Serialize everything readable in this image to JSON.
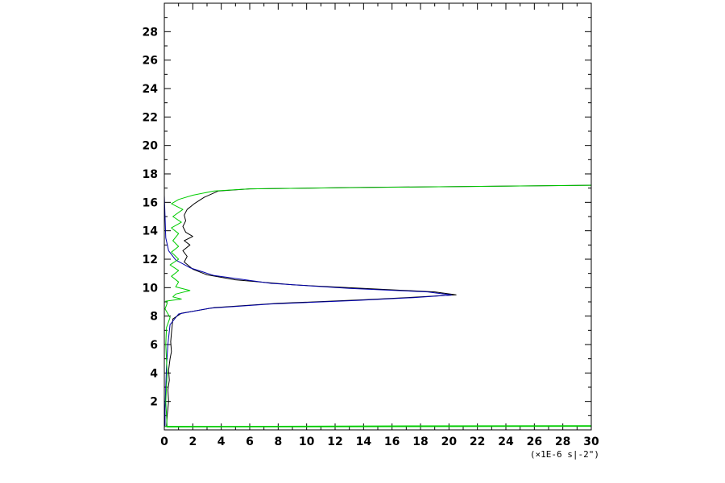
{
  "chart_data": {
    "type": "line",
    "title": "",
    "xlabel": "",
    "ylabel": "",
    "x_unit_label": "(×1E-6 s|-2\")",
    "xlim": [
      0,
      30
    ],
    "ylim": [
      0,
      30
    ],
    "x_ticks": [
      0,
      2,
      4,
      6,
      8,
      10,
      12,
      14,
      16,
      18,
      20,
      22,
      24,
      26,
      28,
      30
    ],
    "y_ticks": [
      2,
      4,
      6,
      8,
      10,
      12,
      14,
      16,
      18,
      20,
      22,
      24,
      26,
      28
    ],
    "grid": false,
    "legend": "none",
    "series": [
      {
        "color": "#000000",
        "points": [
          [
            0.15,
            0.2
          ],
          [
            0.2,
            1.0
          ],
          [
            0.3,
            2.0
          ],
          [
            0.25,
            2.8
          ],
          [
            0.35,
            3.5
          ],
          [
            0.3,
            4.2
          ],
          [
            0.4,
            5.0
          ],
          [
            0.5,
            5.5
          ],
          [
            0.45,
            6.2
          ],
          [
            0.5,
            6.8
          ],
          [
            0.55,
            7.3
          ],
          [
            0.6,
            7.8
          ],
          [
            1.2,
            8.2
          ],
          [
            3.5,
            8.6
          ],
          [
            8.0,
            8.9
          ],
          [
            14.0,
            9.15
          ],
          [
            18.0,
            9.35
          ],
          [
            20.5,
            9.5
          ],
          [
            19.0,
            9.7
          ],
          [
            14.0,
            9.95
          ],
          [
            9.0,
            10.2
          ],
          [
            5.0,
            10.55
          ],
          [
            3.0,
            10.9
          ],
          [
            2.0,
            11.3
          ],
          [
            1.4,
            11.8
          ],
          [
            1.6,
            12.2
          ],
          [
            1.3,
            12.6
          ],
          [
            1.8,
            13.0
          ],
          [
            1.4,
            13.3
          ],
          [
            2.0,
            13.6
          ],
          [
            1.5,
            13.9
          ],
          [
            1.3,
            14.3
          ],
          [
            1.5,
            14.7
          ],
          [
            1.4,
            15.1
          ],
          [
            1.6,
            15.5
          ],
          [
            2.1,
            15.9
          ],
          [
            2.8,
            16.35
          ],
          [
            3.8,
            16.8
          ],
          [
            6.0,
            16.95
          ],
          [
            10.0,
            17.0
          ],
          [
            14.0,
            17.05
          ],
          [
            20.0,
            17.1
          ],
          [
            25.0,
            17.15
          ],
          [
            30.0,
            17.2
          ]
        ]
      },
      {
        "color": "#0000aa",
        "points": [
          [
            0.05,
            0.2
          ],
          [
            0.05,
            1.5
          ],
          [
            0.1,
            3.0
          ],
          [
            0.15,
            4.5
          ],
          [
            0.25,
            6.0
          ],
          [
            0.4,
            7.4
          ],
          [
            1.0,
            8.15
          ],
          [
            3.2,
            8.55
          ],
          [
            7.5,
            8.85
          ],
          [
            13.5,
            9.1
          ],
          [
            17.5,
            9.3
          ],
          [
            20.2,
            9.48
          ],
          [
            18.5,
            9.7
          ],
          [
            13.0,
            9.95
          ],
          [
            7.5,
            10.3
          ],
          [
            3.5,
            10.85
          ],
          [
            1.8,
            11.4
          ],
          [
            0.8,
            11.95
          ],
          [
            0.3,
            12.6
          ],
          [
            0.1,
            13.5
          ],
          [
            0.05,
            15.0
          ],
          [
            0.0,
            16.5
          ],
          [
            0.0,
            18.0
          ],
          [
            0.0,
            23.0
          ],
          [
            0.0,
            27.0
          ]
        ]
      },
      {
        "color": "#00cc00",
        "points": [
          [
            0.0,
            0.25
          ],
          [
            5.0,
            0.25
          ],
          [
            15.0,
            0.28
          ],
          [
            30.0,
            0.3
          ],
          [
            30.0,
            0.25
          ],
          [
            0.2,
            0.2
          ],
          [
            0.1,
            2.0
          ],
          [
            0.2,
            4.0
          ],
          [
            0.1,
            6.0
          ],
          [
            0.15,
            7.2
          ],
          [
            0.4,
            7.9
          ],
          [
            0.05,
            8.5
          ],
          [
            0.2,
            8.9
          ],
          [
            0.1,
            9.05
          ],
          [
            1.2,
            9.2
          ],
          [
            0.6,
            9.35
          ],
          [
            0.8,
            9.55
          ],
          [
            1.8,
            9.8
          ],
          [
            0.8,
            10.05
          ],
          [
            1.0,
            10.4
          ],
          [
            0.5,
            10.8
          ],
          [
            1.0,
            11.2
          ],
          [
            0.4,
            11.6
          ],
          [
            1.0,
            12.0
          ],
          [
            0.5,
            12.5
          ],
          [
            1.0,
            12.9
          ],
          [
            0.6,
            13.3
          ],
          [
            1.0,
            13.8
          ],
          [
            0.5,
            14.2
          ],
          [
            1.2,
            14.6
          ],
          [
            0.6,
            15.0
          ],
          [
            1.3,
            15.5
          ],
          [
            0.5,
            15.9
          ],
          [
            1.0,
            16.2
          ],
          [
            2.0,
            16.5
          ],
          [
            3.5,
            16.8
          ],
          [
            6.0,
            16.95
          ],
          [
            10.0,
            17.0
          ],
          [
            15.0,
            17.05
          ],
          [
            20.0,
            17.1
          ],
          [
            25.0,
            17.15
          ],
          [
            30.0,
            17.2
          ]
        ]
      }
    ]
  }
}
